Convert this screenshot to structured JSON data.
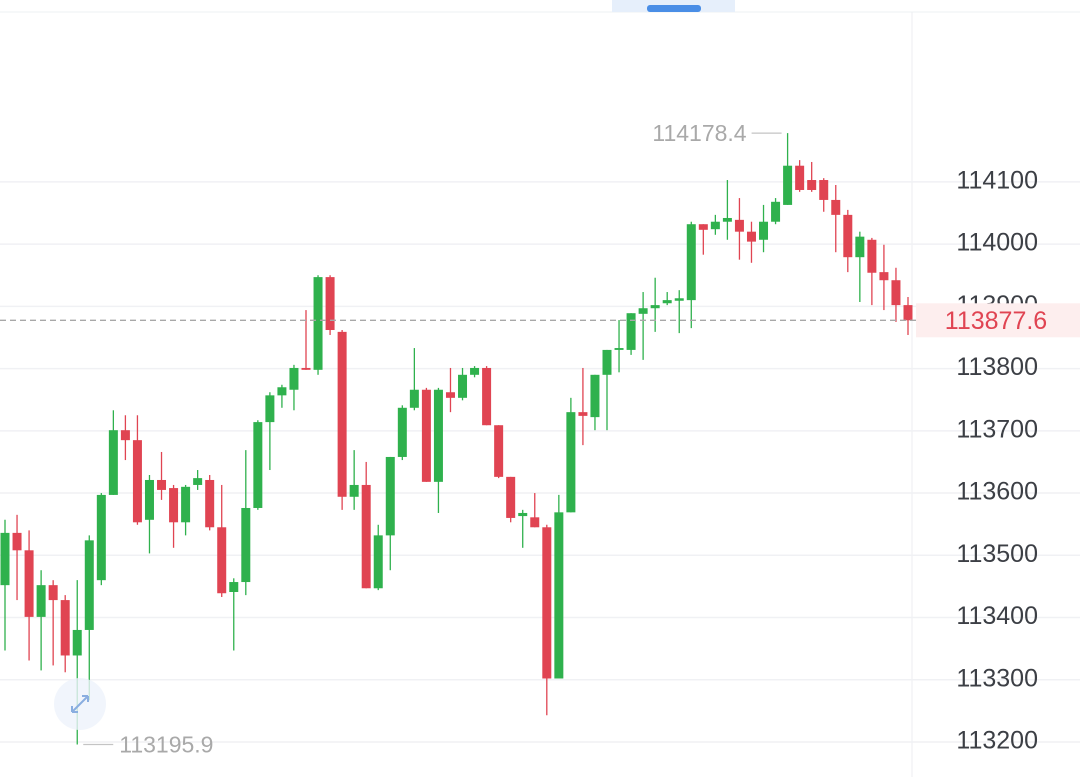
{
  "chart_data": {
    "type": "candlestick",
    "open": [
      113452,
      113536,
      113508,
      113401,
      113452,
      113428,
      113339,
      113380,
      113460,
      113597,
      113701,
      113685,
      113557,
      113621,
      113608,
      113553,
      113613,
      113621,
      113545,
      113441,
      113457,
      113576,
      113714,
      113757,
      113766,
      113801,
      113798,
      113947,
      113859,
      113594,
      113613,
      113447,
      113532,
      113658,
      113737,
      113766,
      113618,
      113762,
      113753,
      113790,
      113801,
      113709,
      113626,
      113563,
      113561,
      113545,
      113302,
      113569,
      113730,
      113722,
      113790,
      113830,
      113830,
      113888,
      113897,
      113905,
      113909,
      113910,
      114032,
      114024,
      114036,
      114039,
      114020,
      114007,
      114036,
      114063,
      114126,
      114103,
      114103,
      114071,
      114047,
      113979,
      114007,
      113955,
      113942,
      113902
    ],
    "high": [
      113557,
      113565,
      113540,
      113476,
      113460,
      113436,
      113460,
      113532,
      113600,
      113733,
      113725,
      113725,
      113629,
      113666,
      113613,
      113613,
      113637,
      113629,
      113613,
      113463,
      113669,
      113717,
      113762,
      113774,
      113806,
      113894,
      113950,
      113950,
      113862,
      113669,
      113650,
      113549,
      113658,
      113741,
      113833,
      113769,
      113769,
      113801,
      113801,
      113804,
      113804,
      113709,
      113626,
      113573,
      113600,
      113549,
      113597,
      113753,
      113801,
      113790,
      113830,
      113878,
      113889,
      113923,
      113946,
      113923,
      113926,
      114036,
      114032,
      114047,
      114103,
      114074,
      114036,
      114063,
      114074,
      114178.4,
      114135,
      114132,
      114106,
      114095,
      114055,
      114020,
      114010,
      113999,
      113962,
      113915
    ],
    "low": [
      113347,
      113428,
      113331,
      113315,
      113323,
      113312,
      113195.9,
      113267,
      113452,
      113597,
      113653,
      113549,
      113503,
      113589,
      113512,
      113532,
      113605,
      113540,
      113433,
      113347,
      113436,
      113573,
      113637,
      113737,
      113733,
      113798,
      113790,
      113854,
      113573,
      113573,
      113447,
      113444,
      113476,
      113653,
      113733,
      113618,
      113568,
      113730,
      113749,
      113786,
      113709,
      113624,
      113553,
      113512,
      113545,
      113243,
      113302,
      113569,
      113677,
      113701,
      113701,
      113794,
      113822,
      113814,
      113859,
      113902,
      113857,
      113865,
      113983,
      114015,
      114007,
      113975,
      113970,
      113987,
      114032,
      114063,
      114084,
      114084,
      114052,
      113987,
      113955,
      113907,
      113902,
      113894,
      113875,
      113854
    ],
    "close": [
      113536,
      113508,
      113401,
      113452,
      113428,
      113339,
      113380,
      113524,
      113597,
      113701,
      113685,
      113553,
      113621,
      113605,
      113553,
      113610,
      113624,
      113545,
      113439,
      113457,
      113576,
      113714,
      113757,
      113770,
      113801,
      113798,
      113947,
      113862,
      113594,
      113613,
      113447,
      113532,
      113658,
      113737,
      113766,
      113618,
      113766,
      113753,
      113790,
      113801,
      113709,
      113626,
      113560,
      113568,
      113545,
      113302,
      113569,
      113730,
      113724,
      113790,
      113830,
      113833,
      113889,
      113897,
      113902,
      113910,
      113913,
      114032,
      114023,
      114036,
      114042,
      114020,
      114004,
      114036,
      114068,
      114126,
      114087,
      114087,
      114071,
      114047,
      113979,
      114012,
      113954,
      113942,
      113902,
      113877.6
    ],
    "up_color": "#2fb14d",
    "down_color": "#e04452",
    "ylim": [
      113163,
      114373
    ],
    "yticks": [
      113200,
      113300,
      113400,
      113500,
      113600,
      113700,
      113800,
      113900,
      114000,
      114100
    ],
    "grid": true,
    "high_label": "114178.4",
    "low_label": "113195.9",
    "last_price_label": "113877.6"
  }
}
